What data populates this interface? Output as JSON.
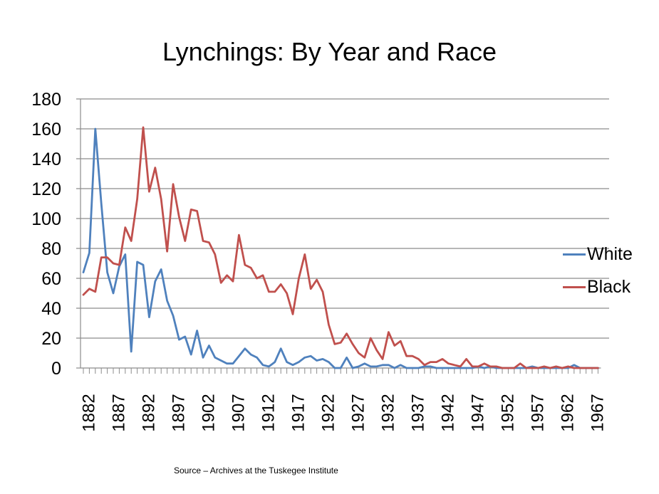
{
  "slide": {
    "title": "Lynchings: By Year and Race",
    "source": "Source – Archives at the Tuskegee Institute"
  },
  "legend": {
    "items": [
      {
        "label": "White",
        "color": "#4F81BD"
      },
      {
        "label": "Black",
        "color": "#C0504D"
      }
    ]
  },
  "chart_data": {
    "type": "line",
    "title": "Lynchings: By Year and Race",
    "xlabel": "",
    "ylabel": "",
    "ylim": [
      0,
      180
    ],
    "yticks": [
      0,
      20,
      40,
      60,
      80,
      100,
      120,
      140,
      160,
      180
    ],
    "xtick_labels": [
      "1882",
      "1887",
      "1892",
      "1897",
      "1902",
      "1907",
      "1912",
      "1917",
      "1922",
      "1927",
      "1932",
      "1937",
      "1942",
      "1947",
      "1952",
      "1957",
      "1962",
      "1967"
    ],
    "grid": true,
    "legend_position": "right",
    "x": [
      1882,
      1883,
      1884,
      1885,
      1886,
      1887,
      1888,
      1889,
      1890,
      1891,
      1892,
      1893,
      1894,
      1895,
      1896,
      1897,
      1898,
      1899,
      1900,
      1901,
      1902,
      1903,
      1904,
      1905,
      1906,
      1907,
      1908,
      1909,
      1910,
      1911,
      1912,
      1913,
      1914,
      1915,
      1916,
      1917,
      1918,
      1919,
      1920,
      1921,
      1922,
      1923,
      1924,
      1925,
      1926,
      1927,
      1928,
      1929,
      1930,
      1931,
      1932,
      1933,
      1934,
      1935,
      1936,
      1937,
      1938,
      1939,
      1940,
      1941,
      1942,
      1943,
      1944,
      1945,
      1946,
      1947,
      1948,
      1949,
      1950,
      1951,
      1952,
      1953,
      1954,
      1955,
      1956,
      1957,
      1958,
      1959,
      1960,
      1961,
      1962,
      1963,
      1964,
      1965,
      1966,
      1967,
      1968
    ],
    "series": [
      {
        "name": "White",
        "color": "#4F81BD",
        "values": [
          64,
          77,
          160,
          110,
          64,
          50,
          68,
          76,
          11,
          71,
          69,
          34,
          58,
          66,
          45,
          35,
          19,
          21,
          9,
          25,
          7,
          15,
          7,
          5,
          3,
          3,
          8,
          13,
          9,
          7,
          2,
          1,
          4,
          13,
          4,
          2,
          4,
          7,
          8,
          5,
          6,
          4,
          0,
          0,
          7,
          0,
          1,
          3,
          1,
          1,
          2,
          2,
          0,
          2,
          0,
          0,
          0,
          1,
          1,
          0,
          0,
          0,
          0,
          0,
          0,
          0,
          1,
          0,
          1,
          0,
          0,
          0,
          0,
          0,
          0,
          1,
          0,
          0,
          0,
          0,
          0,
          0,
          2,
          0,
          0,
          0,
          0
        ]
      },
      {
        "name": "Black",
        "color": "#C0504D",
        "values": [
          49,
          53,
          51,
          74,
          74,
          70,
          69,
          94,
          85,
          113,
          161,
          118,
          134,
          113,
          78,
          123,
          101,
          85,
          106,
          105,
          85,
          84,
          76,
          57,
          62,
          58,
          89,
          69,
          67,
          60,
          62,
          51,
          51,
          56,
          50,
          36,
          60,
          76,
          53,
          59,
          51,
          29,
          16,
          17,
          23,
          16,
          10,
          7,
          20,
          12,
          6,
          24,
          15,
          18,
          8,
          8,
          6,
          2,
          4,
          4,
          6,
          3,
          2,
          1,
          6,
          1,
          1,
          3,
          1,
          1,
          0,
          0,
          0,
          3,
          0,
          0,
          0,
          1,
          0,
          1,
          0,
          1,
          0,
          0,
          0,
          0,
          0
        ]
      }
    ]
  }
}
